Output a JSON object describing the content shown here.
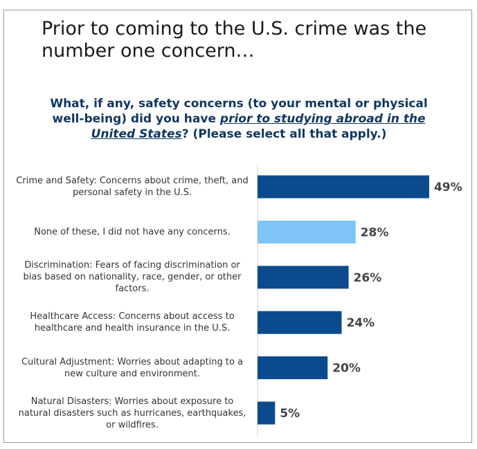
{
  "chart_data": {
    "type": "bar",
    "orientation": "horizontal",
    "title": "Prior to coming to the U.S. crime was the number one concern…",
    "subtitle": [
      "What, if any, safety concerns (to your mental or physical well-being) did you have ",
      "prior to studying abroad in the United States",
      "? (Please select all that apply.)"
    ],
    "categories": [
      "Crime and Safety: Concerns about crime, theft, and personal safety in the U.S.",
      "None of these, I did not have any concerns.",
      "Discrimination: Fears of facing discrimination or bias based on nationality, race, gender, or other factors.",
      "Healthcare Access: Concerns about access to healthcare and health insurance in the U.S.",
      "Cultural Adjustment: Worries about adapting to a new culture and environment.",
      "Natural Disasters: Worries about exposure to natural disasters such as hurricanes, earthquakes, or wildfires."
    ],
    "values": [
      49,
      28,
      26,
      24,
      20,
      5
    ],
    "value_labels": [
      "49%",
      "28%",
      "26%",
      "24%",
      "20%",
      "5%"
    ],
    "colors": [
      "#0b4a8c",
      "#7ec4f6",
      "#0b4a8c",
      "#0b4a8c",
      "#0b4a8c",
      "#0b4a8c"
    ],
    "xlim": [
      0,
      50
    ]
  }
}
